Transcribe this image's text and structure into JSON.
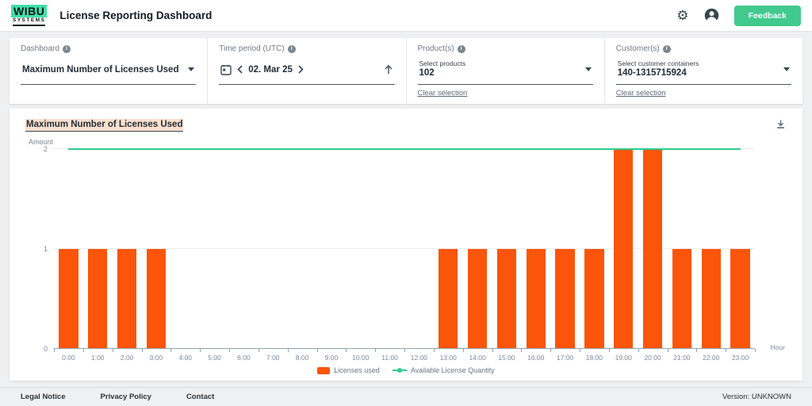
{
  "header": {
    "logo_brand": "WIBU",
    "logo_sub": "SYSTEMS",
    "title": "License Reporting Dashboard",
    "feedback_label": "Feedback"
  },
  "filters": {
    "dashboard": {
      "label": "Dashboard",
      "value": "Maximum Number of Licenses Used"
    },
    "time_period": {
      "label": "Time period (UTC)",
      "value": "02. Mar 25"
    },
    "products": {
      "label": "Product(s)",
      "placeholder": "Select products",
      "value": "102",
      "clear_label": "Clear selection"
    },
    "customers": {
      "label": "Customer(s)",
      "placeholder": "Select customer containers",
      "value": "140-1315715924",
      "clear_label": "Clear selection"
    }
  },
  "chart_data": {
    "type": "bar",
    "title": "Maximum Number of Licenses Used",
    "xlabel": "Hour",
    "ylabel": "Amount",
    "ylim": [
      0,
      2
    ],
    "yticks": [
      0,
      1,
      2
    ],
    "grid": true,
    "legend_position": "bottom",
    "categories": [
      "0:00",
      "1:00",
      "2:00",
      "3:00",
      "4:00",
      "5:00",
      "6:00",
      "7:00",
      "8:00",
      "9:00",
      "10:00",
      "11:00",
      "12:00",
      "13:00",
      "14:00",
      "15:00",
      "16:00",
      "17:00",
      "18:00",
      "19:00",
      "20:00",
      "21:00",
      "22:00",
      "23:00"
    ],
    "series": [
      {
        "name": "Licenses used",
        "type": "bar",
        "color": "#fa550a",
        "values": [
          1,
          1,
          1,
          1,
          0,
          0,
          0,
          0,
          0,
          0,
          0,
          0,
          0,
          1,
          1,
          1,
          1,
          1,
          1,
          2,
          2,
          1,
          1,
          1
        ]
      },
      {
        "name": "Available License Quantity",
        "type": "line",
        "color": "#2ecc8f",
        "values": [
          2,
          2,
          2,
          2,
          2,
          2,
          2,
          2,
          2,
          2,
          2,
          2,
          2,
          2,
          2,
          2,
          2,
          2,
          2,
          2,
          2,
          2,
          2,
          2
        ]
      }
    ]
  },
  "footer": {
    "links": [
      "Legal Notice",
      "Privacy Policy",
      "Contact"
    ],
    "version": "Version: UNKNOWN"
  },
  "colors": {
    "accent_green": "#2ecc8f",
    "bar_orange": "#fa550a",
    "title_highlight": "#fbe0cd"
  }
}
